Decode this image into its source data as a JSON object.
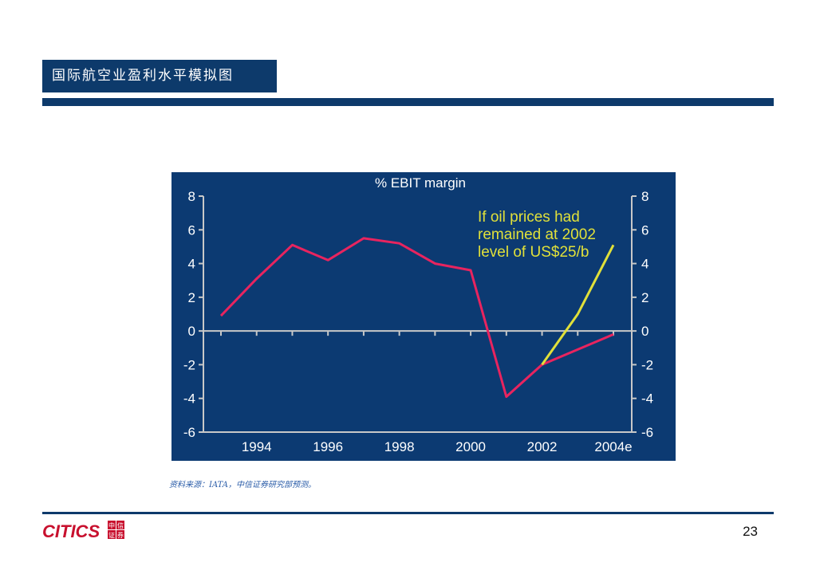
{
  "slide": {
    "title": "国际航空业盈利水平模拟图",
    "source_note": "资料来源：IATA，中信证券研究部预测。",
    "page_number": "23",
    "logo": {
      "text": "CITICS",
      "cn_chars": [
        "中",
        "信",
        "证",
        "券"
      ],
      "color": "#c8102e"
    },
    "colors": {
      "header": "#0d3a6b",
      "chart_bg": "#0c3a72"
    }
  },
  "chart_data": {
    "type": "line",
    "title": "% EBIT margin",
    "ylim": [
      -6,
      8
    ],
    "xlim": [
      1993,
      2004
    ],
    "yticks": [
      -6,
      -4,
      -2,
      0,
      2,
      4,
      6,
      8
    ],
    "x_tick_labels": [
      {
        "x": 1994,
        "label": "1994"
      },
      {
        "x": 1996,
        "label": "1996"
      },
      {
        "x": 1998,
        "label": "1998"
      },
      {
        "x": 2000,
        "label": "2000"
      },
      {
        "x": 2002,
        "label": "2002"
      },
      {
        "x": 2004,
        "label": "2004e"
      }
    ],
    "series": [
      {
        "color": "#e8245f",
        "points": [
          [
            1993,
            0.9
          ],
          [
            1994,
            3.1
          ],
          [
            1995,
            5.1
          ],
          [
            1996,
            4.2
          ],
          [
            1997,
            5.5
          ],
          [
            1998,
            5.2
          ],
          [
            1999,
            4.0
          ],
          [
            2000,
            3.6
          ],
          [
            2001,
            -3.9
          ],
          [
            2002,
            -2.0
          ],
          [
            2003,
            -1.1
          ],
          [
            2004,
            -0.2
          ]
        ]
      },
      {
        "color": "#e0e03a",
        "points": [
          [
            2002,
            -2.0
          ],
          [
            2003,
            1.0
          ],
          [
            2004,
            5.1
          ]
        ]
      }
    ],
    "annotation": {
      "lines": [
        "If oil prices had",
        "remained at 2002",
        "level of US$25/b"
      ],
      "color": "#e0e03a"
    },
    "zero_line": true,
    "grid": false
  }
}
